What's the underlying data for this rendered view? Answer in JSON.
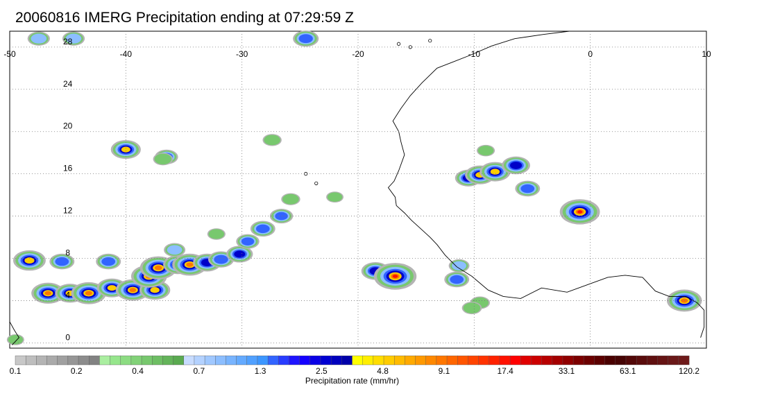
{
  "title": "20060816 IMERG Precipitation ending at 07:29:59 Z",
  "map": {
    "lon_range": [
      -50,
      10
    ],
    "lat_range": [
      -0.5,
      29.5
    ],
    "lon_ticks": [
      -50,
      -40,
      -30,
      -20,
      -10,
      0,
      10
    ],
    "lat_ticks": [
      0,
      4,
      8,
      12,
      16,
      20,
      24,
      28
    ],
    "lon_tick_labels": [
      "-50",
      "-40",
      "-30",
      "-20",
      "-10",
      "0",
      "10"
    ],
    "lat_tick_labels": [
      "0",
      "4",
      "8",
      "12",
      "16",
      "20",
      "24",
      "28"
    ],
    "grid": "dotted",
    "rain_cells": [
      {
        "lon": -47.5,
        "lat": 28.8,
        "intensity": 1.1
      },
      {
        "lon": -44.5,
        "lat": 28.8,
        "intensity": 1.1
      },
      {
        "lon": -24.5,
        "lat": 28.8,
        "intensity": 1.5
      },
      {
        "lon": -40.0,
        "lat": 18.3,
        "intensity": 2.0
      },
      {
        "lon": -36.5,
        "lat": 17.6,
        "intensity": 1.2
      },
      {
        "lon": -27.4,
        "lat": 19.2,
        "intensity": 0.7
      },
      {
        "lon": -48.3,
        "lat": 7.8,
        "intensity": 2.3
      },
      {
        "lon": -45.5,
        "lat": 7.7,
        "intensity": 1.4
      },
      {
        "lon": -41.5,
        "lat": 7.7,
        "intensity": 1.4
      },
      {
        "lon": -46.7,
        "lat": 4.7,
        "intensity": 2.4
      },
      {
        "lon": -44.8,
        "lat": 4.7,
        "intensity": 2.0
      },
      {
        "lon": -43.2,
        "lat": 4.7,
        "intensity": 2.6
      },
      {
        "lon": -41.2,
        "lat": 5.2,
        "intensity": 2.0
      },
      {
        "lon": -39.4,
        "lat": 5.0,
        "intensity": 2.5
      },
      {
        "lon": -37.5,
        "lat": 5.0,
        "intensity": 2.1
      },
      {
        "lon": -38.0,
        "lat": 6.3,
        "intensity": 2.7
      },
      {
        "lon": -37.2,
        "lat": 7.1,
        "intensity": 2.8
      },
      {
        "lon": -35.5,
        "lat": 7.4,
        "intensity": 2.0
      },
      {
        "lon": -34.5,
        "lat": 7.4,
        "intensity": 2.6
      },
      {
        "lon": -33.0,
        "lat": 7.6,
        "intensity": 1.8
      },
      {
        "lon": -31.8,
        "lat": 7.9,
        "intensity": 1.5
      },
      {
        "lon": -30.2,
        "lat": 8.4,
        "intensity": 1.6
      },
      {
        "lon": -29.5,
        "lat": 9.6,
        "intensity": 1.2
      },
      {
        "lon": -28.2,
        "lat": 10.8,
        "intensity": 1.4
      },
      {
        "lon": -26.6,
        "lat": 12.0,
        "intensity": 1.2
      },
      {
        "lon": -35.8,
        "lat": 8.8,
        "intensity": 1.0
      },
      {
        "lon": -25.8,
        "lat": 13.6,
        "intensity": 0.7
      },
      {
        "lon": -18.5,
        "lat": 6.8,
        "intensity": 1.8
      },
      {
        "lon": -16.8,
        "lat": 6.3,
        "intensity": 3.5
      },
      {
        "lon": -10.5,
        "lat": 15.6,
        "intensity": 1.6
      },
      {
        "lon": -9.5,
        "lat": 15.9,
        "intensity": 2.0
      },
      {
        "lon": -8.2,
        "lat": 16.2,
        "intensity": 2.1
      },
      {
        "lon": -6.4,
        "lat": 16.8,
        "intensity": 1.8
      },
      {
        "lon": -0.9,
        "lat": 12.4,
        "intensity": 3.2
      },
      {
        "lon": -5.4,
        "lat": 14.6,
        "intensity": 1.4
      },
      {
        "lon": -11.3,
        "lat": 7.3,
        "intensity": 0.9
      },
      {
        "lon": -11.5,
        "lat": 6.0,
        "intensity": 1.4
      },
      {
        "lon": -9.5,
        "lat": 3.8,
        "intensity": 0.8
      },
      {
        "lon": -10.2,
        "lat": 3.3,
        "intensity": 0.8
      },
      {
        "lon": 8.1,
        "lat": 4.0,
        "intensity": 2.6
      },
      {
        "lon": -49.5,
        "lat": 0.3,
        "intensity": 0.5
      },
      {
        "lon": -32.2,
        "lat": 10.3,
        "intensity": 0.6
      },
      {
        "lon": -36.8,
        "lat": 17.4,
        "intensity": 0.8
      },
      {
        "lon": -9.0,
        "lat": 18.2,
        "intensity": 0.6
      },
      {
        "lon": -22.0,
        "lat": 13.8,
        "intensity": 0.5
      }
    ]
  },
  "colorbar": {
    "colors": [
      "#c8c8c8",
      "#bebebe",
      "#b4b4b4",
      "#aaaaaa",
      "#a0a0a0",
      "#969696",
      "#8c8c8c",
      "#828282",
      "#aaeea0",
      "#96e68c",
      "#8cdc82",
      "#82d278",
      "#78c86e",
      "#6ebe64",
      "#64b45a",
      "#5aaa50",
      "#c8dcff",
      "#b4d2ff",
      "#a0c8ff",
      "#8cbeff",
      "#78b4ff",
      "#64aaff",
      "#50a0ff",
      "#3c96ff",
      "#3264ff",
      "#283cff",
      "#1e14ff",
      "#1400ff",
      "#0a00e6",
      "#0000d2",
      "#0000be",
      "#0000aa",
      "#ffff00",
      "#ffee00",
      "#ffdd00",
      "#ffcc00",
      "#ffbb00",
      "#ffaa00",
      "#ff9900",
      "#ff8800",
      "#ff7700",
      "#ff6600",
      "#ff5500",
      "#ff4400",
      "#ff3300",
      "#ff2200",
      "#ff1100",
      "#ff0000",
      "#e00000",
      "#cc0000",
      "#b80000",
      "#a40000",
      "#900000",
      "#7c0000",
      "#6c0000",
      "#5c0000",
      "#4a0000",
      "#460404",
      "#520808",
      "#5a0c0c",
      "#601010",
      "#661414",
      "#6a1818",
      "#6e1a1a"
    ],
    "tick_labels": [
      "0.1",
      "0.2",
      "0.4",
      "0.7",
      "1.3",
      "2.5",
      "4.8",
      "9.1",
      "17.4",
      "33.1",
      "63.1",
      "120.2"
    ],
    "xlabel": "Precipitation rate (mm/hr)"
  }
}
